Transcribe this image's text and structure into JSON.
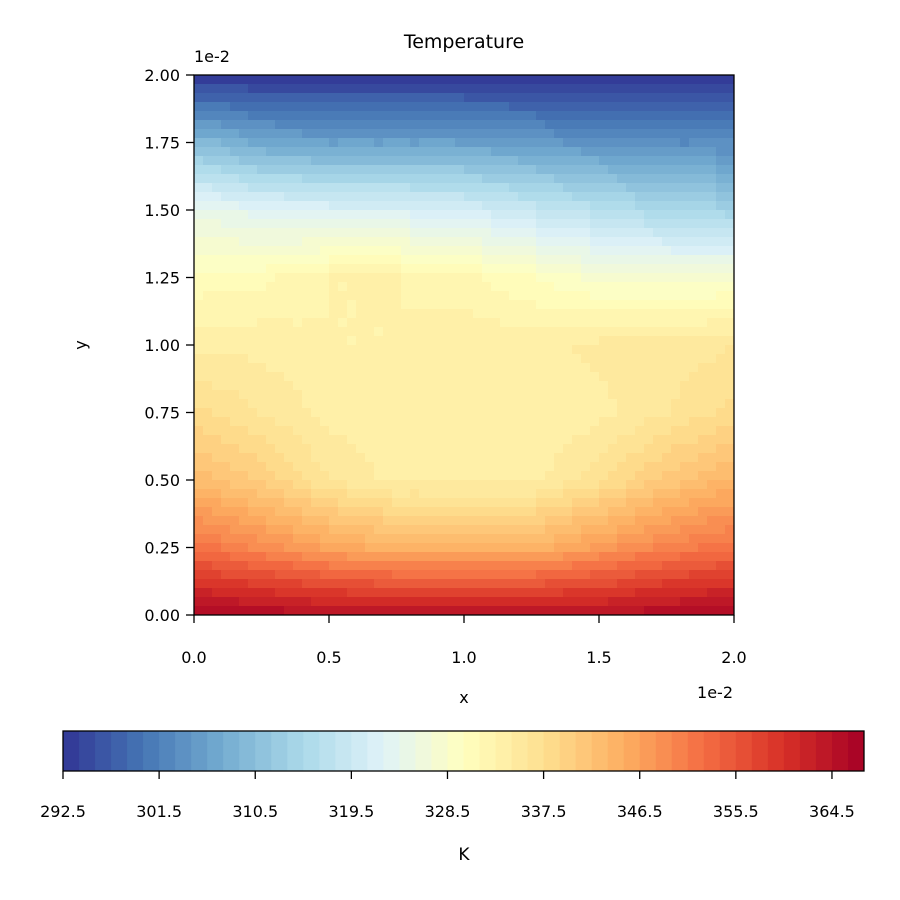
{
  "chart_data": {
    "type": "heatmap",
    "subtype": "filled-contour",
    "title": "Temperature",
    "xlabel": "x",
    "ylabel": "y",
    "xlim": [
      0.0,
      0.02
    ],
    "ylim": [
      0.0,
      0.02
    ],
    "x_offset_label": "1e-2",
    "y_offset_label": "1e-2",
    "x_ticks": [
      "0.0",
      "0.5",
      "1.0",
      "1.5",
      "2.0"
    ],
    "y_ticks": [
      "0.00",
      "0.25",
      "0.50",
      "0.75",
      "1.00",
      "1.25",
      "1.50",
      "1.75",
      "2.00"
    ],
    "colormap": "RdYlBu_r",
    "colorbar": {
      "label": "K",
      "orientation": "horizontal",
      "placement": "bottom",
      "range": [
        292.5,
        367.5
      ],
      "levels": 50,
      "ticks": [
        "292.5",
        "301.5",
        "310.5",
        "319.5",
        "328.5",
        "337.5",
        "346.5",
        "355.5",
        "364.5"
      ]
    },
    "field": {
      "description_values": "temperature in K sampled on a 9x9 grid, rows from y=0 (bottom) to y=0.02 (top), columns from x=0 to x=0.02",
      "x": [
        0.0,
        0.0025,
        0.005,
        0.0075,
        0.01,
        0.0125,
        0.015,
        0.0175,
        0.02
      ],
      "y": [
        0.0,
        0.0025,
        0.005,
        0.0075,
        0.01,
        0.0125,
        0.015,
        0.0175,
        0.02
      ],
      "values": [
        [
          367.0,
          366.0,
          365.0,
          365.0,
          365.0,
          365.0,
          365.0,
          366.0,
          367.0
        ],
        [
          352.0,
          349.0,
          346.0,
          344.0,
          344.0,
          344.0,
          347.0,
          350.0,
          352.0
        ],
        [
          343.0,
          340.0,
          336.0,
          334.0,
          334.0,
          334.0,
          337.0,
          341.0,
          344.0
        ],
        [
          338.0,
          336.0,
          334.0,
          333.0,
          333.0,
          333.0,
          334.0,
          336.0,
          338.0
        ],
        [
          334.0,
          334.0,
          333.0,
          333.0,
          334.0,
          334.0,
          335.0,
          335.0,
          336.0
        ],
        [
          330.5,
          331.0,
          333.0,
          333.0,
          332.0,
          330.0,
          328.0,
          327.5,
          328.0
        ],
        [
          325.0,
          323.0,
          322.0,
          322.0,
          321.0,
          319.0,
          317.0,
          315.0,
          314.0
        ],
        [
          310.0,
          307.0,
          306.0,
          306.0,
          306.0,
          305.0,
          304.0,
          303.0,
          303.0
        ],
        [
          292.5,
          292.5,
          292.5,
          292.5,
          292.5,
          292.5,
          292.5,
          292.5,
          292.5
        ]
      ]
    }
  }
}
